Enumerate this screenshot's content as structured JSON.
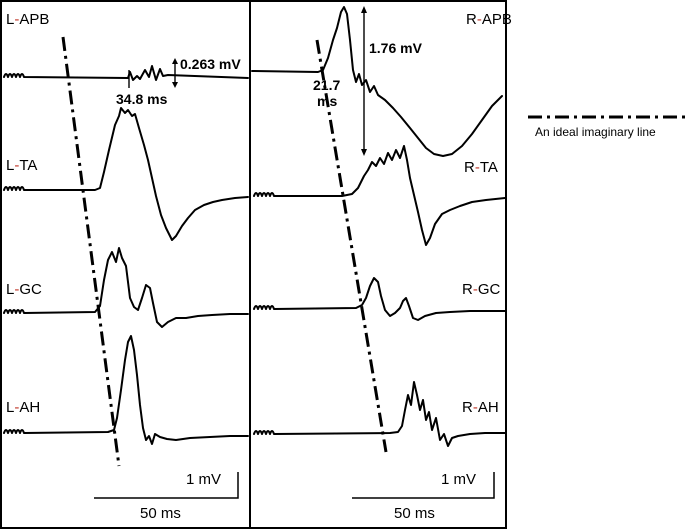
{
  "left_panel": {
    "traces": [
      {
        "label_prefix": "L",
        "label_sep": "-",
        "label_muscle": "APB"
      },
      {
        "label_prefix": "L",
        "label_sep": "-",
        "label_muscle": "TA"
      },
      {
        "label_prefix": "L",
        "label_sep": "-",
        "label_muscle": "GC"
      },
      {
        "label_prefix": "L",
        "label_sep": "-",
        "label_muscle": "AH"
      }
    ],
    "annotations": {
      "amplitude": "0.263 mV",
      "latency": "34.8 ms"
    },
    "scale": {
      "amplitude": "1 mV",
      "time": "50 ms"
    }
  },
  "right_panel": {
    "traces": [
      {
        "label_prefix": "R",
        "label_sep": "-",
        "label_muscle": "APB"
      },
      {
        "label_prefix": "R",
        "label_sep": "-",
        "label_muscle": "TA"
      },
      {
        "label_prefix": "R",
        "label_sep": "-",
        "label_muscle": "GC"
      },
      {
        "label_prefix": "R",
        "label_sep": "-",
        "label_muscle": "AH"
      }
    ],
    "annotations": {
      "amplitude": "1.76 mV",
      "latency_value": "21.7",
      "latency_unit": "ms"
    },
    "scale": {
      "amplitude": "1 mV",
      "time": "50 ms"
    }
  },
  "legend": {
    "line_label": "An ideal imaginary line"
  },
  "colors": {
    "hyphen_accent": "#c0392b"
  }
}
